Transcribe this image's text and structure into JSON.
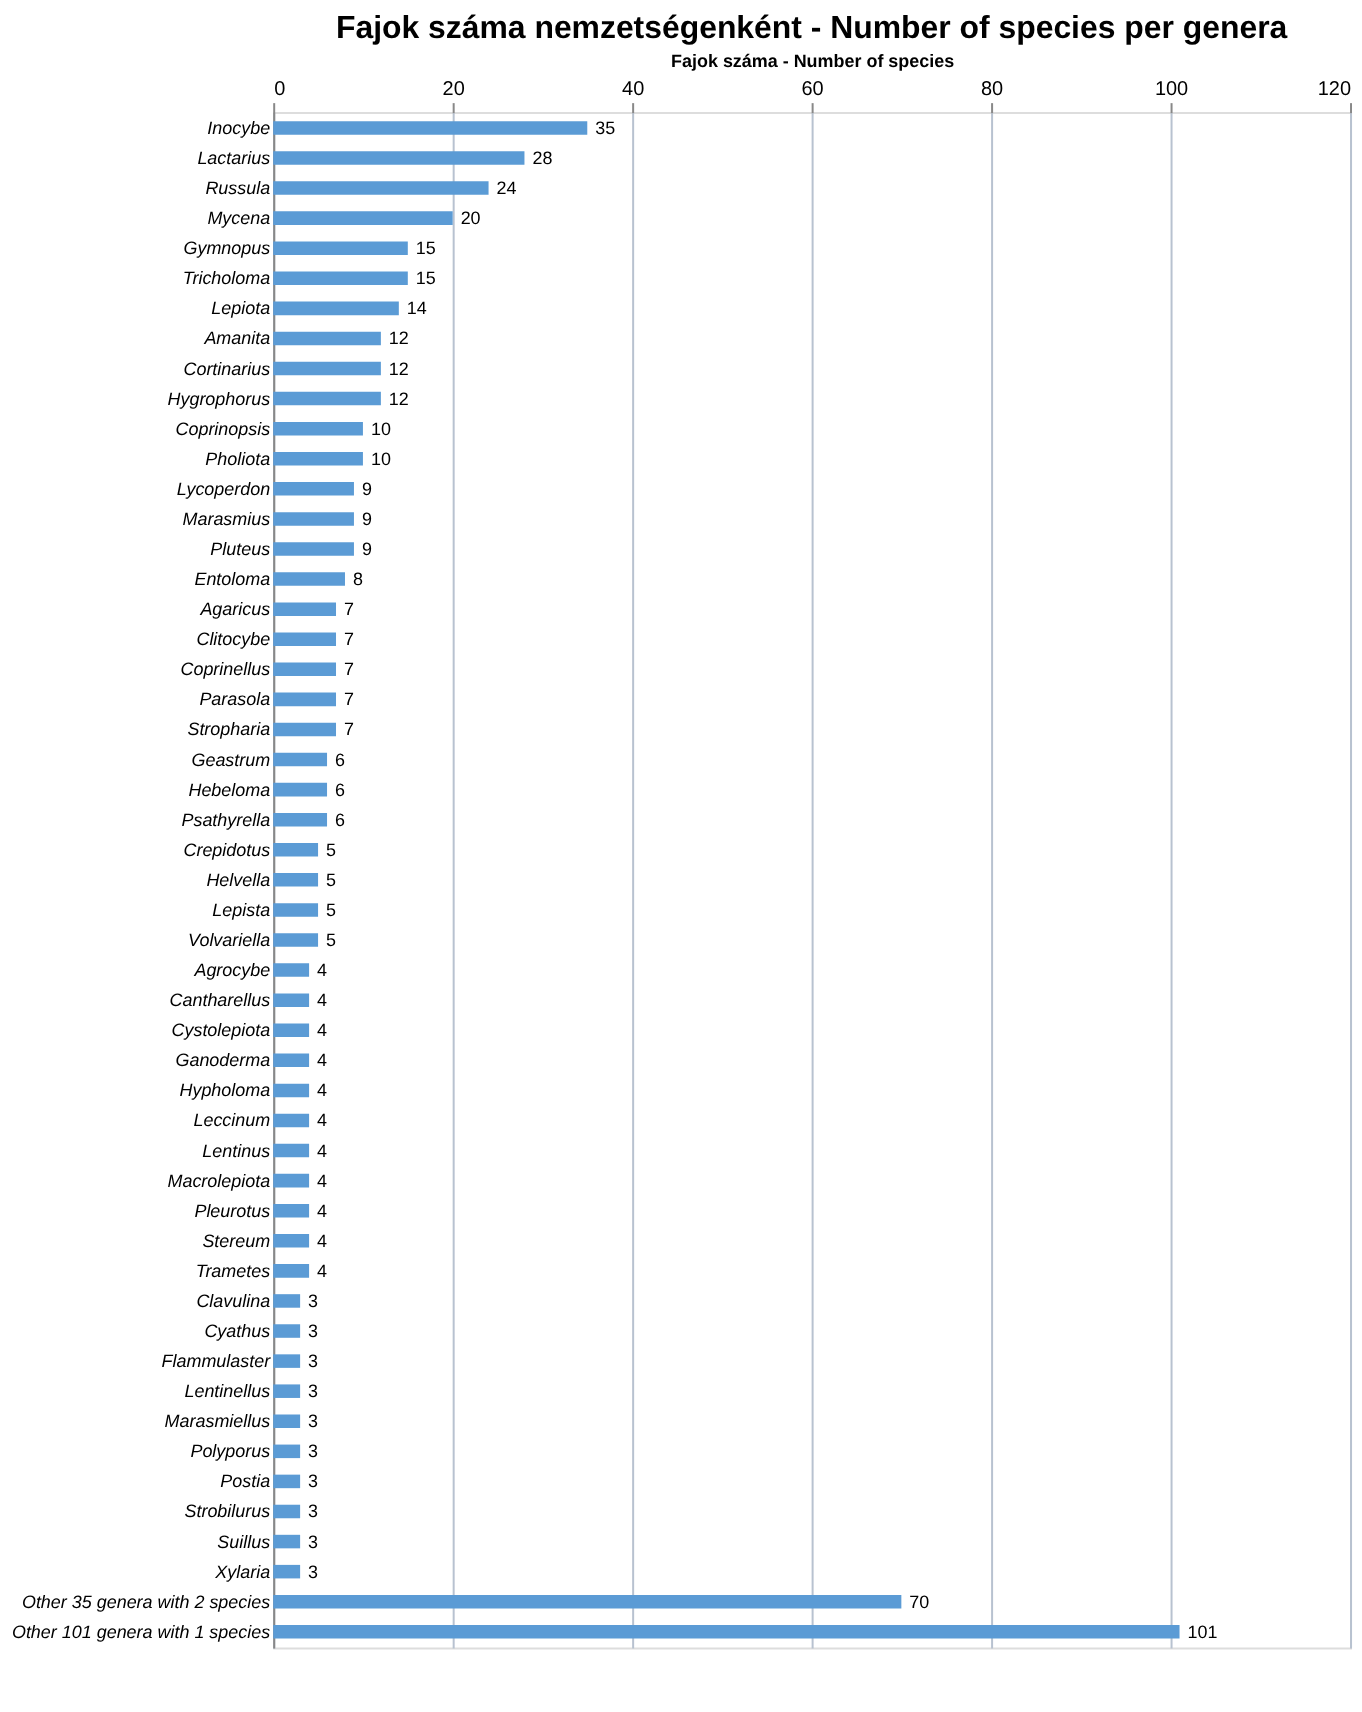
{
  "chart_data": {
    "type": "bar",
    "orientation": "horizontal",
    "title": "Fajok száma nemzetségenként - Number of species per genera",
    "xlabel": "Fajok száma - Number of species",
    "categories": [
      "Inocybe",
      "Lactarius",
      "Russula",
      "Mycena",
      "Gymnopus",
      "Tricholoma",
      "Lepiota",
      "Amanita",
      "Cortinarius",
      "Hygrophorus",
      "Coprinopsis",
      "Pholiota",
      "Lycoperdon",
      "Marasmius",
      "Pluteus",
      "Entoloma",
      "Agaricus",
      "Clitocybe",
      "Coprinellus",
      "Parasola",
      "Stropharia",
      "Geastrum",
      "Hebeloma",
      "Psathyrella",
      "Crepidotus",
      "Helvella",
      "Lepista",
      "Volvariella",
      "Agrocybe",
      "Cantharellus",
      "Cystolepiota",
      "Ganoderma",
      "Hypholoma",
      "Leccinum",
      "Lentinus",
      "Macrolepiota",
      "Pleurotus",
      "Stereum",
      "Trametes",
      "Clavulina",
      "Cyathus",
      "Flammulaster",
      "Lentinellus",
      "Marasmiellus",
      "Polyporus",
      "Postia",
      "Strobilurus",
      "Suillus",
      "Xylaria",
      "Other 35 genera with 2 species",
      "Other 101 genera with 1 species"
    ],
    "values": [
      35,
      28,
      24,
      20,
      15,
      15,
      14,
      12,
      12,
      12,
      10,
      10,
      9,
      9,
      9,
      8,
      7,
      7,
      7,
      7,
      7,
      6,
      6,
      6,
      5,
      5,
      5,
      5,
      4,
      4,
      4,
      4,
      4,
      4,
      4,
      4,
      4,
      4,
      4,
      3,
      3,
      3,
      3,
      3,
      3,
      3,
      3,
      3,
      3,
      70,
      101
    ],
    "color": "#5b9bd5",
    "xlim": [
      0,
      120
    ],
    "xticks": [
      0,
      20,
      40,
      60,
      80,
      100,
      120
    ],
    "grid": "x",
    "data_labels": true
  }
}
